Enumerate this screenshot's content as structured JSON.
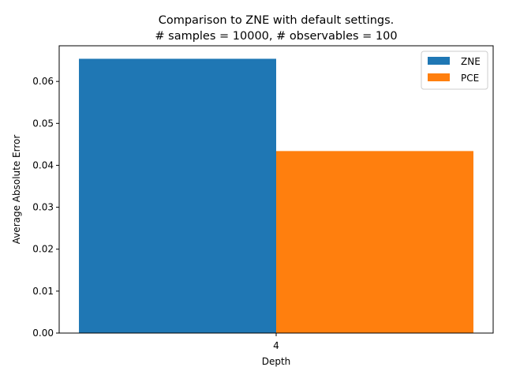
{
  "chart_data": {
    "type": "bar",
    "title_line1": "Comparison to ZNE with default settings.",
    "title_line2": "# samples = 10000, # observables = 100",
    "xlabel": "Depth",
    "ylabel": "Average Absolute Error",
    "categories": [
      "4"
    ],
    "ylim": [
      0,
      0.0685
    ],
    "yticks": [
      "0.00",
      "0.01",
      "0.02",
      "0.03",
      "0.04",
      "0.05",
      "0.06"
    ],
    "series": [
      {
        "name": "ZNE",
        "color": "#1f77b4",
        "values": [
          0.0654
        ]
      },
      {
        "name": "PCE",
        "color": "#ff7f0e",
        "values": [
          0.0434
        ]
      }
    ],
    "legend": "top-right"
  }
}
